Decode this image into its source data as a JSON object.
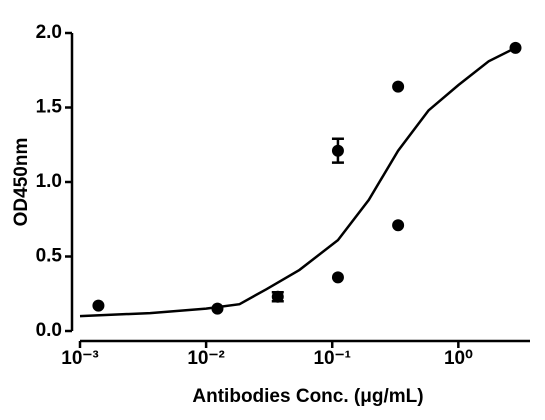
{
  "chart_data": {
    "type": "scatter",
    "x_label": "Antibodies Conc. (μg/mL)",
    "y_label": "OD450nm",
    "xscale": "log",
    "xlim": [
      0.001,
      3.7
    ],
    "ylim": [
      0,
      2
    ],
    "xticks": [
      {
        "value": 0.001,
        "label": "10⁻³"
      },
      {
        "value": 0.01,
        "label": "10⁻²"
      },
      {
        "value": 0.1,
        "label": "10⁻¹"
      },
      {
        "value": 1,
        "label": "10⁰"
      }
    ],
    "yticks": [
      {
        "value": 0,
        "label": "0.0"
      },
      {
        "value": 0.5,
        "label": "0.5"
      },
      {
        "value": 1,
        "label": "1.0"
      },
      {
        "value": 1.5,
        "label": "1.5"
      },
      {
        "value": 2,
        "label": "2.0"
      }
    ],
    "color": "#000000",
    "points": {
      "x": [
        0.0014,
        0.0123,
        0.037,
        0.111,
        0.111,
        0.333,
        0.333,
        2.84
      ],
      "values": [
        0.17,
        0.15,
        0.23,
        1.21,
        0.36,
        1.64,
        0.71,
        1.9
      ],
      "errors": [
        0,
        0,
        0.03,
        0.08,
        0,
        0,
        0,
        0
      ]
    },
    "fit": {
      "x": [
        0.001,
        0.0036,
        0.01,
        0.0184,
        0.03,
        0.055,
        0.111,
        0.195,
        0.333,
        0.58,
        1.0,
        1.74,
        2.84
      ],
      "values": [
        0.1,
        0.12,
        0.15,
        0.18,
        0.28,
        0.41,
        0.61,
        0.88,
        1.21,
        1.48,
        1.65,
        1.81,
        1.9
      ]
    }
  }
}
